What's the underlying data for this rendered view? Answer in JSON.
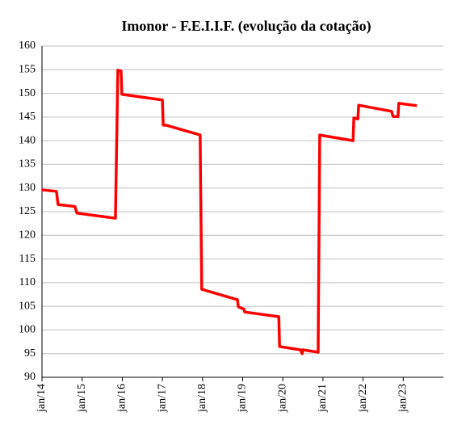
{
  "chart_data": {
    "type": "line",
    "title": "Imonor - F.E.I.I.F. (evolução da cotação)",
    "x": [
      2014.0,
      2014.36,
      2014.4,
      2014.82,
      2014.87,
      2015.83,
      2015.89,
      2015.97,
      2015.99,
      2017.0,
      2017.02,
      2017.08,
      2017.94,
      2017.98,
      2018.79,
      2018.87,
      2018.89,
      2019.03,
      2019.05,
      2019.9,
      2019.92,
      2020.44,
      2020.48,
      2020.5,
      2020.88,
      2020.92,
      2021.75,
      2021.77,
      2021.87,
      2021.89,
      2022.71,
      2022.75,
      2022.87,
      2022.89,
      2023.34
    ],
    "series": [
      {
        "name": "Imonor - F.E.I.I.F.",
        "color": "#ff0000",
        "values": [
          129.6,
          129.3,
          126.5,
          126.1,
          124.7,
          123.6,
          154.9,
          154.7,
          149.8,
          148.6,
          143.3,
          143.3,
          141.2,
          108.6,
          106.6,
          106.4,
          104.9,
          104.4,
          103.8,
          102.8,
          96.5,
          95.8,
          95,
          95.8,
          95.3,
          141.2,
          140,
          144.8,
          144.6,
          147.5,
          146.2,
          145.1,
          145.1,
          147.9,
          147.4
        ]
      }
    ],
    "xlim": [
      2014,
      2024
    ],
    "xticks": [
      {
        "value": 2014,
        "label": "jan/14"
      },
      {
        "value": 2015,
        "label": "jan/15"
      },
      {
        "value": 2016,
        "label": "jan/16"
      },
      {
        "value": 2017,
        "label": "jan/17"
      },
      {
        "value": 2018,
        "label": "jan/18"
      },
      {
        "value": 2019,
        "label": "jan/19"
      },
      {
        "value": 2020,
        "label": "jan/20"
      },
      {
        "value": 2021,
        "label": "jan/21"
      },
      {
        "value": 2022,
        "label": "jan/22"
      },
      {
        "value": 2023,
        "label": "jan/23"
      }
    ],
    "ylim": [
      90,
      160
    ],
    "yticks": [
      90,
      95,
      100,
      105,
      110,
      115,
      120,
      125,
      130,
      135,
      140,
      145,
      150,
      155,
      160
    ],
    "grid": true
  }
}
